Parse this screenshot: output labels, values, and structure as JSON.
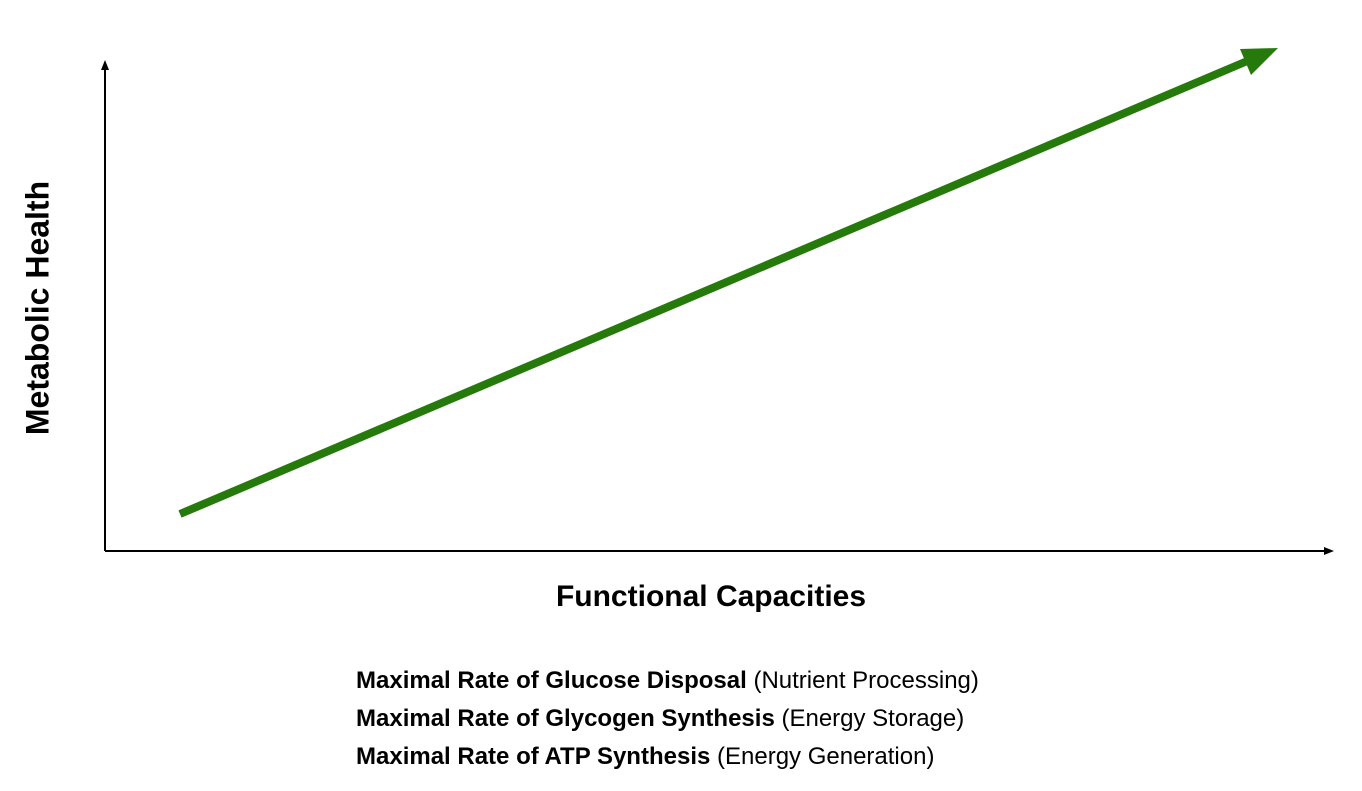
{
  "axes": {
    "y_label": "Metabolic Health",
    "x_label": "Functional Capacities"
  },
  "capacities": [
    {
      "name": "Maximal Rate of Glucose Disposal",
      "role": "(Nutrient Processing)"
    },
    {
      "name": "Maximal Rate of Glycogen Synthesis",
      "role": "(Energy Storage)"
    },
    {
      "name": "Maximal Rate of ATP Synthesis",
      "role": "(Energy Generation)"
    }
  ]
}
